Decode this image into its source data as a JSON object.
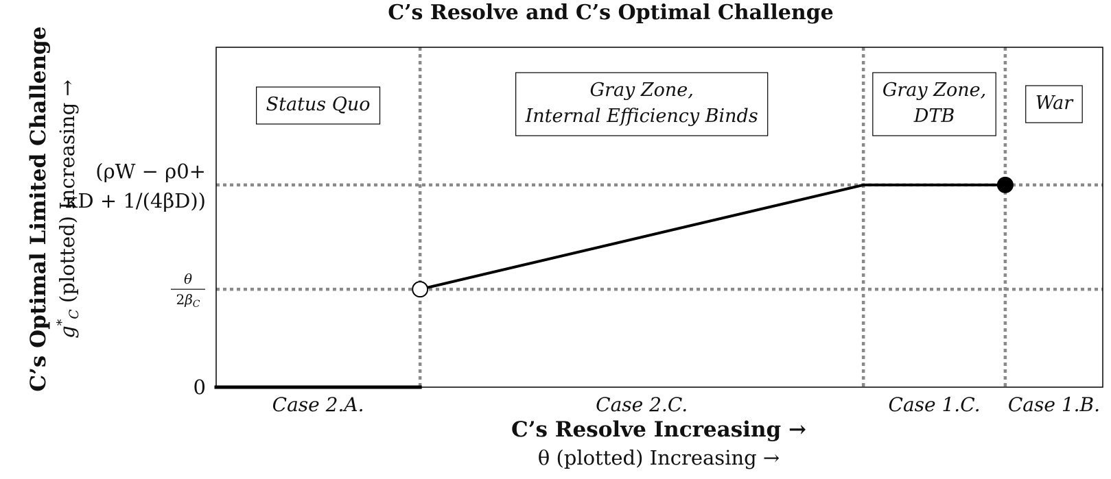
{
  "chart_data": {
    "type": "line",
    "title": "C’s Resolve and C’s Optimal Challenge",
    "xlabel": "C’s Resolve Increasing →",
    "xlabel_sub": "θ (plotted) Increasing →",
    "ylabel": "C’s Optimal Limited Challenge",
    "ylabel_sub_var": "g",
    "ylabel_sub_star": "*",
    "ylabel_sub_subscript": "C",
    "ylabel_sub_rest": " (plotted) Increasing →",
    "xlim": [
      0,
      100
    ],
    "ylim": [
      0,
      100
    ],
    "grid": "dotted lines at region boundaries and labeled y-levels",
    "thresholds_x": [
      23,
      73,
      89
    ],
    "y_ticks": [
      {
        "key": "zero",
        "value": 0,
        "label": "0"
      },
      {
        "key": "theta",
        "value": 28.8,
        "numerator": "θ",
        "denominator_prefix": "2",
        "denominator_var": "β",
        "denominator_sub": "C"
      },
      {
        "key": "rho",
        "value": 59.5,
        "line1": "(ρW − ρ0+",
        "line2": "κD + 1/(4βD))"
      }
    ],
    "series": [
      {
        "segments": [
          {
            "x": [
              0,
              23
            ],
            "y": [
              0,
              0
            ]
          },
          {
            "x": [
              23,
              73
            ],
            "y": [
              28.8,
              59.5
            ]
          },
          {
            "x": [
              73,
              89
            ],
            "y": [
              59.5,
              59.5
            ]
          }
        ],
        "open_points": [
          {
            "x": 23,
            "y": 28.8
          }
        ],
        "closed_points": [
          {
            "x": 89,
            "y": 59.5
          }
        ]
      }
    ],
    "regions": [
      {
        "label_lines": [
          "Status Quo"
        ]
      },
      {
        "label_lines": [
          "Gray Zone,",
          "Internal Efficiency Binds"
        ]
      },
      {
        "label_lines": [
          "Gray Zone,",
          "DTB"
        ]
      },
      {
        "label_lines": [
          "War"
        ]
      }
    ],
    "cases": [
      "Case 2.A.",
      "Case 2.C.",
      "Case 1.C.",
      "Case 1.B."
    ],
    "colors": {
      "line": "#000000",
      "grid": "#8a8a8a",
      "axes": "#000000"
    }
  }
}
